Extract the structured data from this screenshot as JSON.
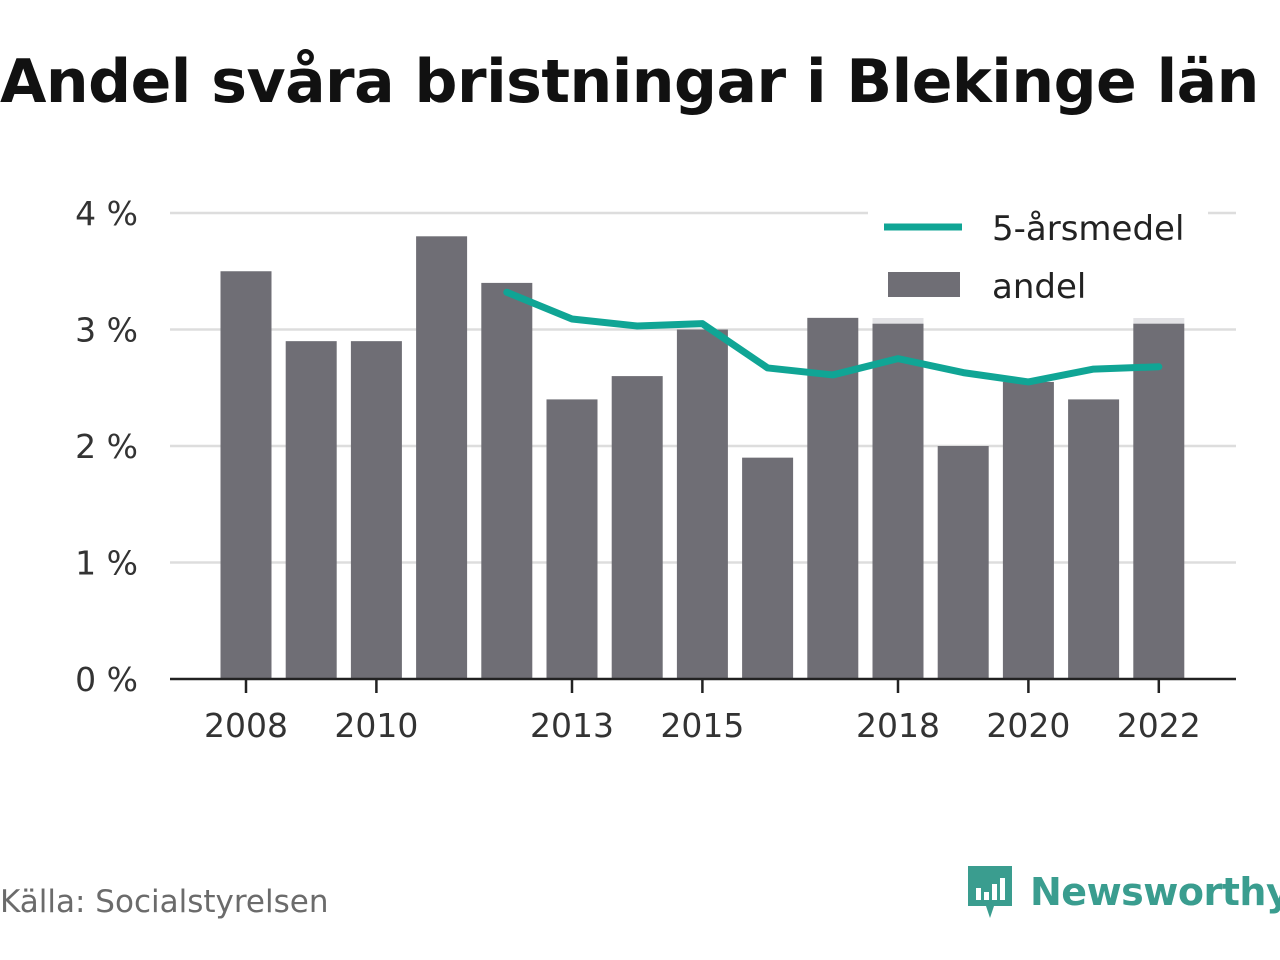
{
  "title": "Andel svåra bristningar i Blekinge län",
  "source": "Källa: Socialstyrelsen",
  "brand": {
    "name": "Newsworthy",
    "icon": "newsworthy-logo-icon",
    "color": "#3a9d8f"
  },
  "colors": {
    "bar": "#6f6e75",
    "line": "#10a595",
    "grid": "#dddddd",
    "axis": "#222222",
    "uncertainty": "#e3e3e6"
  },
  "chart_data": {
    "type": "bar",
    "title": "Andel svåra bristningar i Blekinge län",
    "x": [
      2008,
      2009,
      2010,
      2011,
      2012,
      2013,
      2014,
      2015,
      2016,
      2017,
      2018,
      2019,
      2020,
      2021,
      2022
    ],
    "x_tick_labels": [
      "2008",
      "2010",
      "2013",
      "2015",
      "2018",
      "2020",
      "2022"
    ],
    "x_tick_years": [
      2008,
      2010,
      2013,
      2015,
      2018,
      2020,
      2022
    ],
    "y_tick_labels": [
      "0 %",
      "1 %",
      "2 %",
      "3 %",
      "4 %"
    ],
    "y_tick_values": [
      0,
      1,
      2,
      3,
      4
    ],
    "ylim": [
      0,
      4
    ],
    "grid": true,
    "legend": {
      "placement": "top-right",
      "line_label": "5-årsmedel",
      "bar_label": "andel"
    },
    "series": [
      {
        "name": "andel",
        "type": "bar",
        "values": [
          3.5,
          2.9,
          2.9,
          3.8,
          3.4,
          2.4,
          2.6,
          3.0,
          1.9,
          3.1,
          3.05,
          2.0,
          2.55,
          2.4,
          3.05
        ]
      },
      {
        "name": "5-årsmedel",
        "type": "line",
        "x": [
          2012,
          2013,
          2014,
          2015,
          2016,
          2017,
          2018,
          2019,
          2020,
          2021,
          2022
        ],
        "values": [
          3.32,
          3.09,
          3.03,
          3.05,
          2.67,
          2.61,
          2.75,
          2.63,
          2.55,
          2.66,
          2.68
        ]
      }
    ],
    "uncertainty_top": {
      "2018": 3.1,
      "2022": 3.2
    }
  }
}
